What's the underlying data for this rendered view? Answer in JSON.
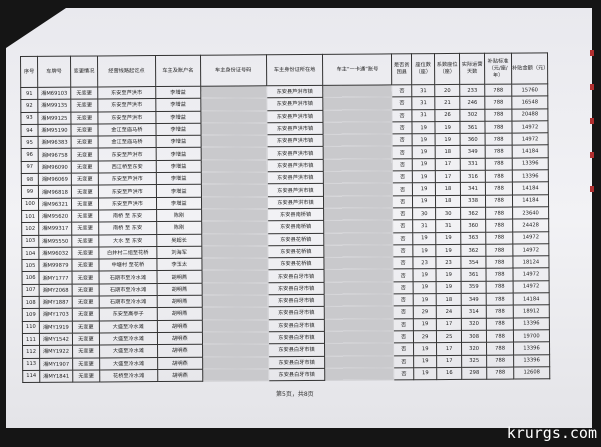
{
  "table": {
    "headers": [
      "序号",
      "车牌号",
      "变更情况",
      "经营线路起讫点",
      "车主及账户名",
      "车主身份证号码",
      "车主身份证所在地",
      "车主“一卡通”账号",
      "是否贫困县",
      "座位数（座）",
      "系数座位（座）",
      "实际运营天数",
      "补贴标准（元/座/年）",
      "补贴金额（元）"
    ],
    "rows": [
      [
        "91",
        "湘M69103",
        "无变更",
        "东安至芦洪市",
        "李增益",
        "",
        "东安县芦洪市镇",
        "",
        "否",
        "31",
        "20",
        "233",
        "788",
        "15760"
      ],
      [
        "92",
        "湘M99135",
        "无变更",
        "东安至芦洪市",
        "李增益",
        "",
        "东安县芦洪市镇",
        "",
        "否",
        "31",
        "21",
        "246",
        "788",
        "16548"
      ],
      [
        "93",
        "湘M99125",
        "无变更",
        "东安至芦洪市",
        "李增益",
        "",
        "东安县芦洪市镇",
        "",
        "否",
        "31",
        "26",
        "302",
        "788",
        "20488"
      ],
      [
        "94",
        "湘M95190",
        "无变更",
        "金江至庙马桥",
        "李增益",
        "",
        "东安县芦洪市镇",
        "",
        "否",
        "19",
        "19",
        "361",
        "788",
        "14972"
      ],
      [
        "95",
        "湘M96383",
        "无变更",
        "金江至庙马桥",
        "李增益",
        "",
        "东安县芦洪市镇",
        "",
        "否",
        "19",
        "19",
        "360",
        "788",
        "14972"
      ],
      [
        "96",
        "湘M96758",
        "无变更",
        "东安至芦洪市",
        "李增益",
        "",
        "东安县芦洪市镇",
        "",
        "否",
        "19",
        "18",
        "349",
        "788",
        "14184"
      ],
      [
        "97",
        "湘M96090",
        "无变更",
        "西江桥至东安",
        "李增益",
        "",
        "东安县芦洪市镇",
        "",
        "否",
        "19",
        "17",
        "331",
        "788",
        "13396"
      ],
      [
        "98",
        "湘M96069",
        "无变更",
        "东安至芦洪市",
        "李增益",
        "",
        "东安县芦洪市镇",
        "",
        "否",
        "19",
        "17",
        "316",
        "788",
        "13396"
      ],
      [
        "99",
        "湘M96818",
        "无变更",
        "东安至芦洪市",
        "李增益",
        "",
        "东安县芦洪市镇",
        "",
        "否",
        "19",
        "18",
        "341",
        "788",
        "14184"
      ],
      [
        "100",
        "湘M96321",
        "无变更",
        "东安至芦洪市",
        "李增益",
        "",
        "东安县芦洪市镇",
        "",
        "否",
        "19",
        "18",
        "338",
        "788",
        "14184"
      ],
      [
        "101",
        "湘M95620",
        "无变更",
        "南桥 至 东安",
        "陈刚",
        "",
        "东安县南桥镇",
        "",
        "否",
        "30",
        "30",
        "362",
        "788",
        "23640"
      ],
      [
        "102",
        "湘M99317",
        "无变更",
        "南桥 至 东安",
        "陈刚",
        "",
        "东安县南桥镇",
        "",
        "否",
        "31",
        "31",
        "360",
        "788",
        "24428"
      ],
      [
        "103",
        "湘M95550",
        "无变更",
        "大水 至 东安",
        "吴超长",
        "",
        "东安县花桥镇",
        "",
        "否",
        "19",
        "19",
        "363",
        "788",
        "14972"
      ],
      [
        "104",
        "湘M96032",
        "无变更",
        "白井村二组至花桥",
        "刘海军",
        "",
        "东安县花桥镇",
        "",
        "否",
        "19",
        "19",
        "362",
        "788",
        "14972"
      ],
      [
        "105",
        "湘M99879",
        "无变更",
        "中塘村 至花桥",
        "李玉太",
        "",
        "东安县花桥镇",
        "",
        "否",
        "23",
        "23",
        "354",
        "788",
        "18124"
      ],
      [
        "106",
        "湘MY1777",
        "无变更",
        "石期市至冷水滩",
        "胡明燕",
        "",
        "东安县白牙市镇",
        "",
        "否",
        "19",
        "19",
        "361",
        "788",
        "14972"
      ],
      [
        "107",
        "湘MY2068",
        "无变更",
        "石期市至冷水滩",
        "胡明燕",
        "",
        "东安县白牙市镇",
        "",
        "否",
        "19",
        "19",
        "359",
        "788",
        "14972"
      ],
      [
        "108",
        "湘MY1887",
        "无变更",
        "石期市至冷水滩",
        "胡明燕",
        "",
        "东安县白牙市镇",
        "",
        "否",
        "19",
        "18",
        "349",
        "788",
        "14184"
      ],
      [
        "109",
        "湘MY1703",
        "无变更",
        "东安至高亭子",
        "胡明燕",
        "",
        "东安县白牙市镇",
        "",
        "否",
        "29",
        "24",
        "314",
        "788",
        "18912"
      ],
      [
        "110",
        "湘MY1919",
        "无变更",
        "大盛至冷水滩",
        "胡明燕",
        "",
        "东安县白牙市镇",
        "",
        "否",
        "19",
        "17",
        "320",
        "788",
        "13396"
      ],
      [
        "111",
        "湘MY1542",
        "无变更",
        "大盛至冷水滩",
        "胡明燕",
        "",
        "东安县白牙市镇",
        "",
        "否",
        "29",
        "25",
        "308",
        "788",
        "19700"
      ],
      [
        "112",
        "湘MY1922",
        "无变更",
        "大盛至冷水滩",
        "胡明燕",
        "",
        "东安县白牙市镇",
        "",
        "否",
        "19",
        "17",
        "320",
        "788",
        "13396"
      ],
      [
        "113",
        "湘MY1907",
        "无变更",
        "大盛至冷水滩",
        "胡明燕",
        "",
        "东安县白牙市镇",
        "",
        "否",
        "19",
        "17",
        "325",
        "788",
        "13396"
      ],
      [
        "114",
        "湘MY1841",
        "无变更",
        "花桥至冷水滩",
        "胡明燕",
        "",
        "东安县白牙市镇",
        "",
        "否",
        "19",
        "16",
        "298",
        "788",
        "12608"
      ]
    ]
  },
  "footer": {
    "page": "第5页，共8页"
  },
  "watermark": "krurgs.com"
}
